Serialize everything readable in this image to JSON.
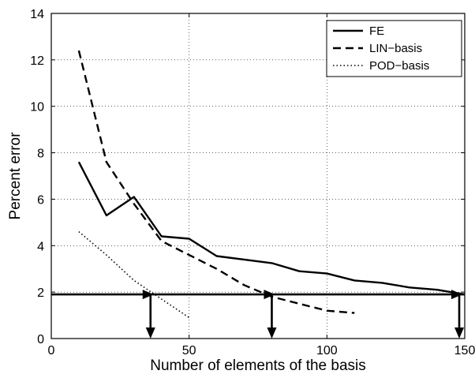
{
  "chart_data": {
    "type": "line",
    "xlabel": "Number of elements of the basis",
    "ylabel": "Percent error",
    "xlim": [
      0,
      150
    ],
    "ylim": [
      0,
      14
    ],
    "xticks": [
      0,
      50,
      100,
      150
    ],
    "yticks": [
      0,
      2,
      4,
      6,
      8,
      10,
      12,
      14
    ],
    "grid": true,
    "legend_position": "top-right",
    "series": [
      {
        "name": "FE",
        "style": "solid",
        "x": [
          10,
          20,
          30,
          40,
          50,
          60,
          70,
          80,
          90,
          100,
          110,
          120,
          130,
          140,
          150
        ],
        "y": [
          7.6,
          5.3,
          6.1,
          4.4,
          4.3,
          3.55,
          3.4,
          3.25,
          2.9,
          2.8,
          2.5,
          2.4,
          2.2,
          2.1,
          1.9
        ]
      },
      {
        "name": "LIN−basis",
        "style": "dashed",
        "x": [
          10,
          20,
          30,
          40,
          50,
          60,
          70,
          80,
          90,
          100,
          110
        ],
        "y": [
          12.4,
          7.6,
          5.8,
          4.2,
          3.6,
          3.0,
          2.3,
          1.8,
          1.5,
          1.2,
          1.1
        ]
      },
      {
        "name": "POD−basis",
        "style": "dotted",
        "x": [
          10,
          20,
          30,
          40,
          50
        ],
        "y": [
          4.6,
          3.6,
          2.5,
          1.7,
          0.9
        ]
      }
    ],
    "threshold": {
      "y": 1.9,
      "x_from": 0,
      "x_to": 150
    },
    "markers": [
      {
        "x": 36,
        "y": 1.9
      },
      {
        "x": 80,
        "y": 1.9
      },
      {
        "x": 148,
        "y": 1.9
      }
    ]
  }
}
